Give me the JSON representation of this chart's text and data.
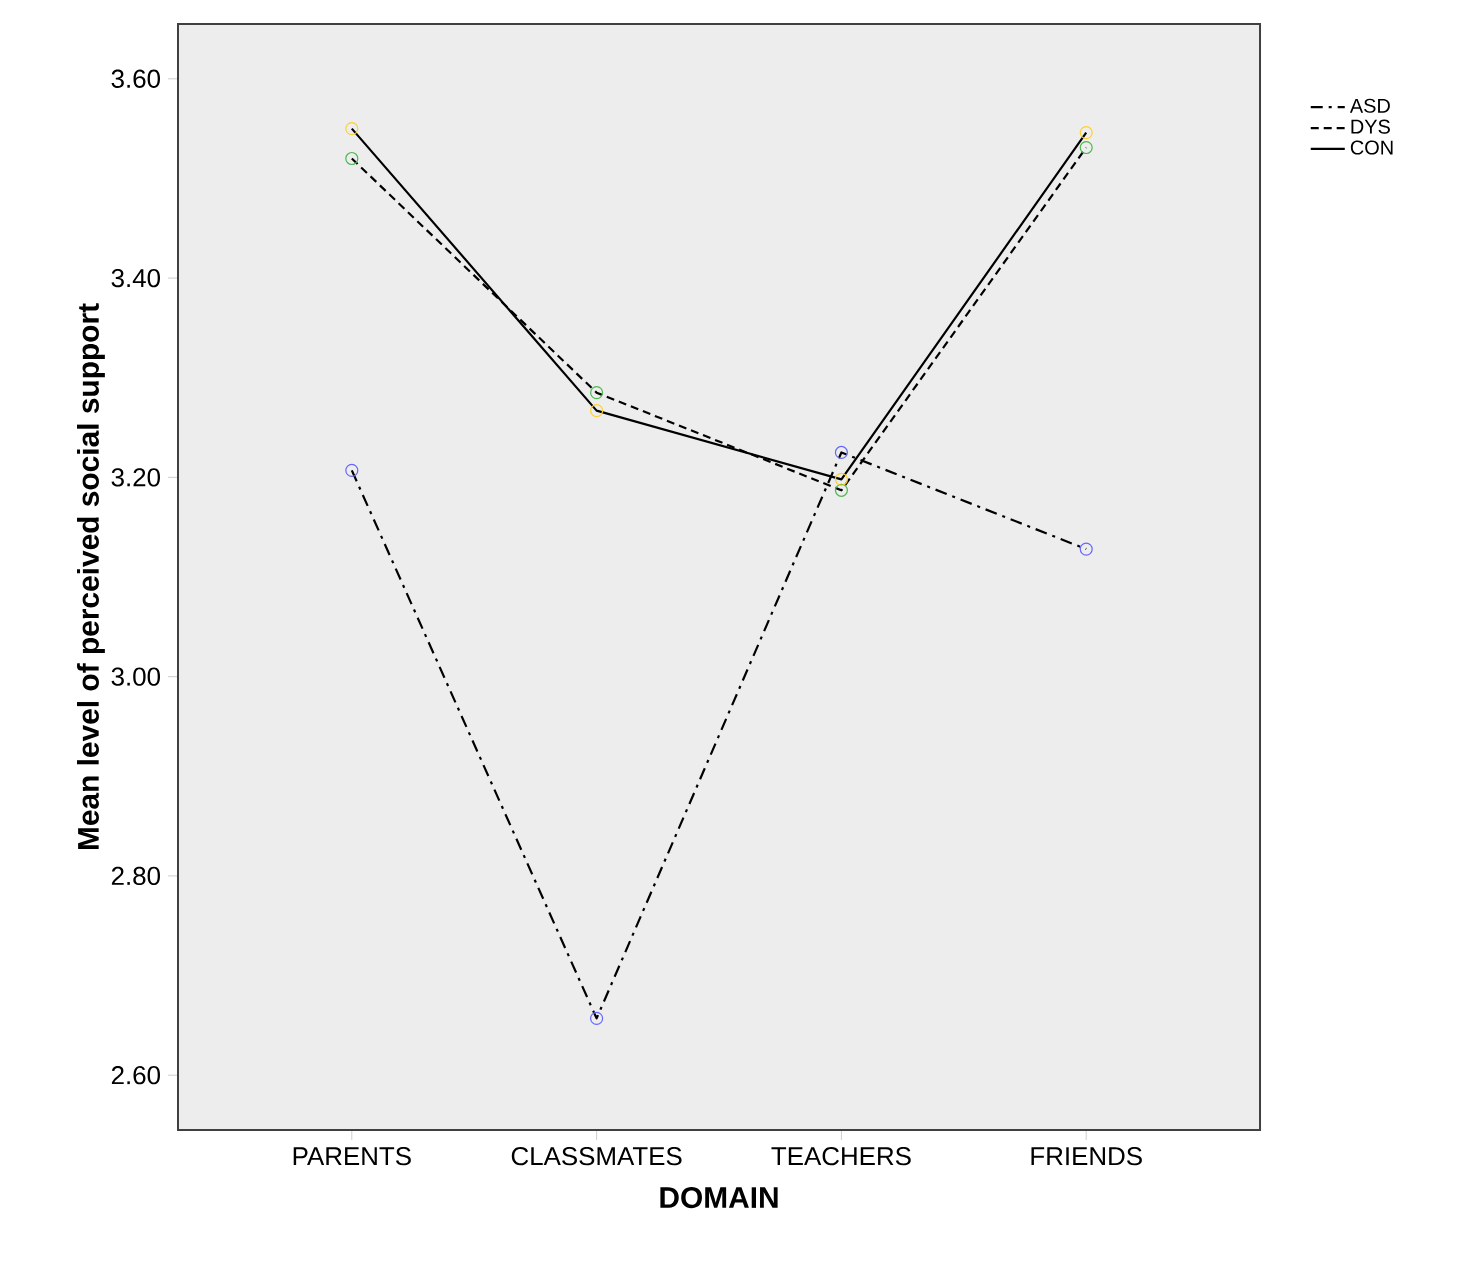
{
  "chart_data": {
    "type": "line",
    "xlabel": "DOMAIN",
    "ylabel": "Mean level of perceived social support",
    "categories": [
      "PARENTS",
      "CLASSMATES",
      "TEACHERS",
      "FRIENDS"
    ],
    "series": [
      {
        "name": "ASD",
        "color": "#000000",
        "line_style": "dashdot",
        "values": [
          3.207,
          2.657,
          3.225,
          3.128
        ]
      },
      {
        "name": "DYS",
        "color": "#000000",
        "line_style": "dashed",
        "values": [
          3.52,
          3.285,
          3.187,
          3.531
        ]
      },
      {
        "name": "CON",
        "color": "#000000",
        "line_style": "solid",
        "values": [
          3.55,
          3.267,
          3.198,
          3.546
        ]
      }
    ],
    "ylim": [
      2.545,
      3.655
    ],
    "yticks": [
      {
        "value": 2.6,
        "label": "2.60"
      },
      {
        "value": 2.8,
        "label": "2.80"
      },
      {
        "value": 3.0,
        "label": "3.00"
      },
      {
        "value": 3.2,
        "label": "3.20"
      },
      {
        "value": 3.4,
        "label": "3.40"
      },
      {
        "value": 3.6,
        "label": "3.60"
      }
    ],
    "grid": false,
    "legend": "top right",
    "marker": "circle"
  }
}
